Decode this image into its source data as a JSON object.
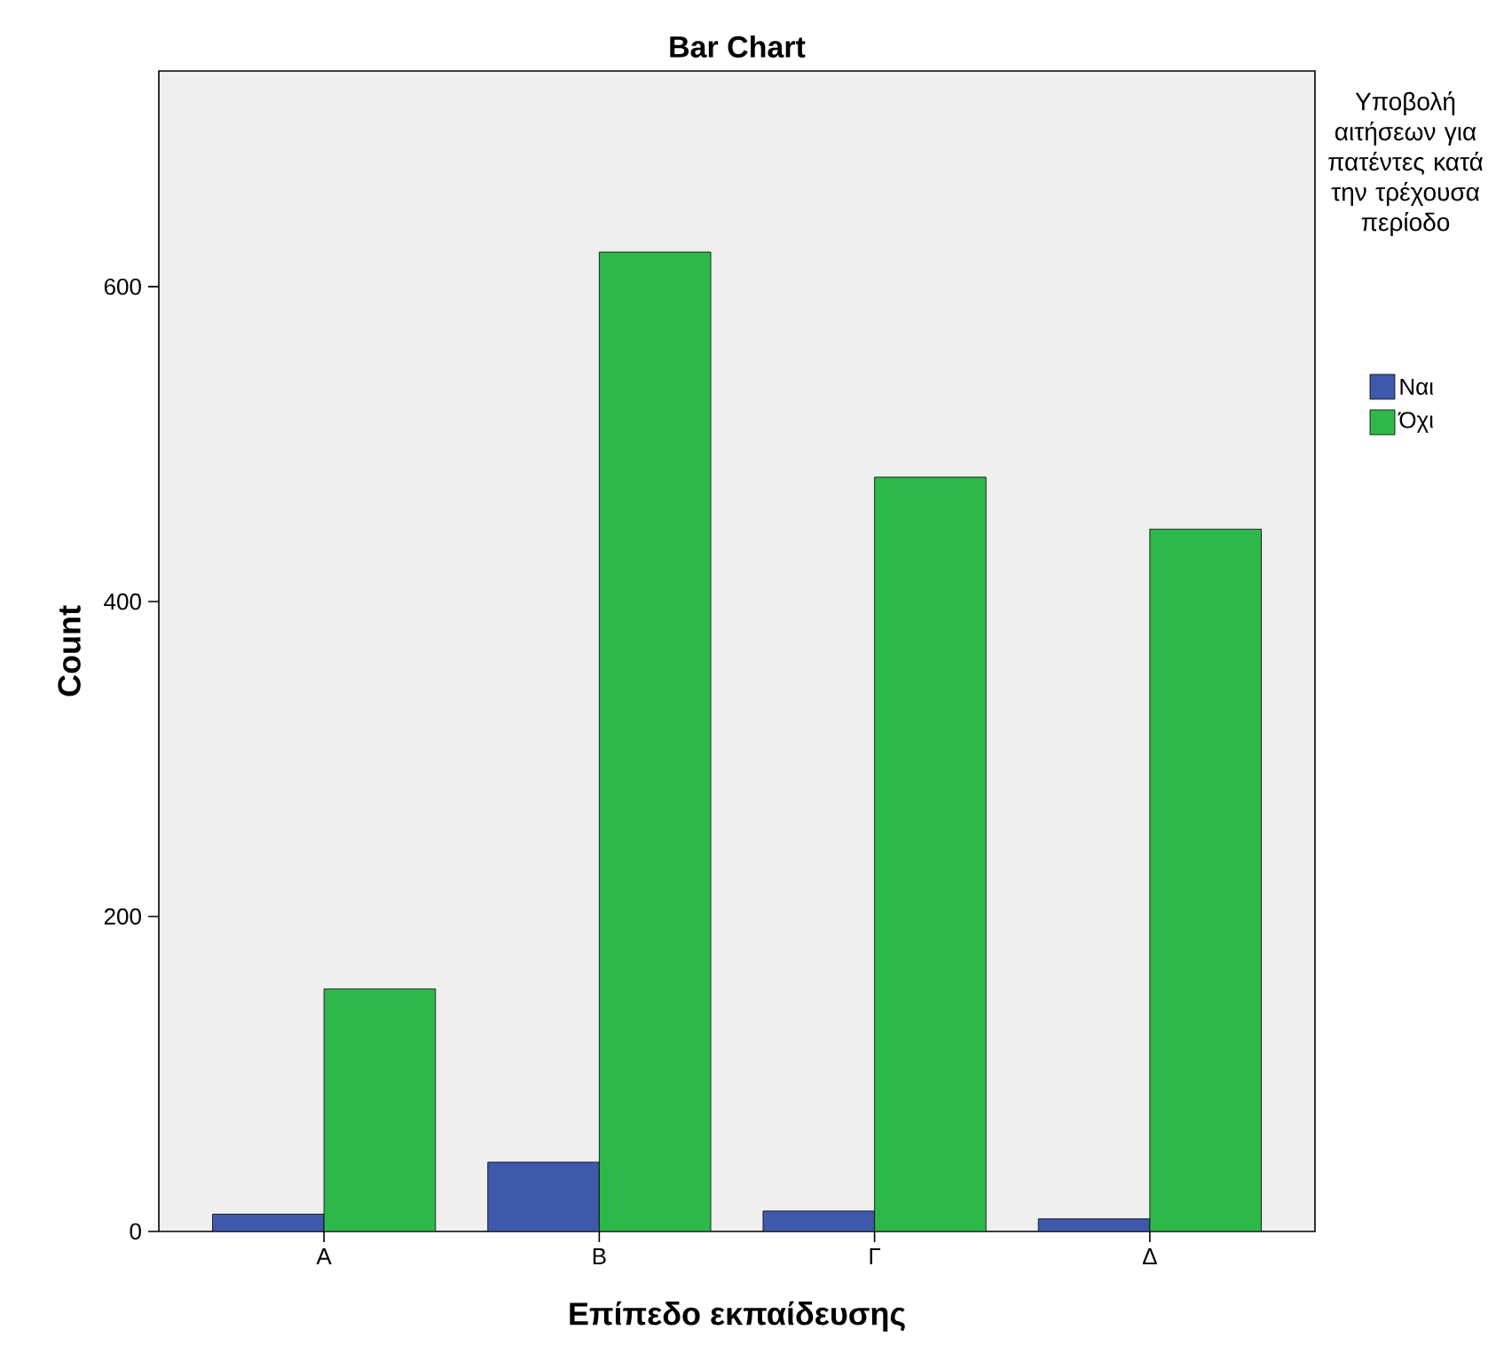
{
  "chart_data": {
    "type": "bar",
    "title": "Bar Chart",
    "xlabel": "Επίπεδο εκπαίδευσης",
    "ylabel": "Count",
    "legend_title": "Υποβολή αιτήσεων για πατέντες κατά την τρέχουσα περίοδο",
    "categories": [
      "Α",
      "Β",
      "Γ",
      "Δ"
    ],
    "series": [
      {
        "name": "Ναι",
        "color": "#3e58ac",
        "values": [
          11,
          44,
          13,
          8
        ]
      },
      {
        "name": "Όχι",
        "color": "#2eb84a",
        "values": [
          154,
          622,
          479,
          446
        ]
      }
    ],
    "ylim": [
      0,
      737
    ],
    "yticks": [
      0,
      200,
      400,
      600
    ],
    "grid": false,
    "legend": "right"
  }
}
